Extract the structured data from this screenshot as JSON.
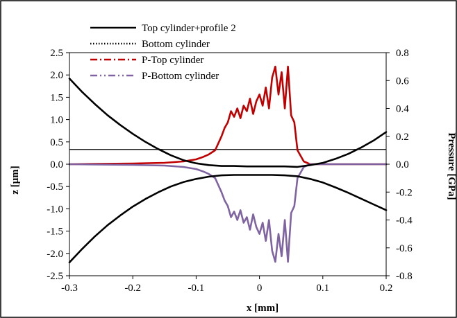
{
  "chart_data": {
    "type": "line",
    "xlabel": "x [mm]",
    "ylabel": "z [µm]",
    "y2label": "Pressure [GPa]",
    "xlim": [
      -0.3,
      0.2
    ],
    "ylim": [
      -2.5,
      2.5
    ],
    "y2lim": [
      -0.8,
      0.8
    ],
    "x_ticks": [
      "-0.3",
      "-0.2",
      "-0.1",
      "0",
      "0.1",
      "0.2"
    ],
    "y_ticks": [
      "2.5",
      "2.0",
      "1.5",
      "1.0",
      "0.5",
      "0.0",
      "-0.5",
      "-1.0",
      "-1.5",
      "-2.0",
      "-2.5"
    ],
    "y2_ticks": [
      "0.8",
      "0.6",
      "0.4",
      "0.2",
      "0.0",
      "-0.2",
      "-0.4",
      "-0.6",
      "-0.8"
    ],
    "grid": false,
    "legend_position": "top-left",
    "reference_line_z": 0.33,
    "series": [
      {
        "name": "Top cylinder+profile 2",
        "axis": "left",
        "color": "#000000",
        "dash": "solid",
        "x": [
          -0.3,
          -0.28,
          -0.26,
          -0.24,
          -0.22,
          -0.2,
          -0.18,
          -0.16,
          -0.14,
          -0.12,
          -0.1,
          -0.08,
          -0.06,
          -0.04,
          -0.02,
          0,
          0.02,
          0.04,
          0.06,
          0.08,
          0.1,
          0.12,
          0.14,
          0.16,
          0.18,
          0.2
        ],
        "values": [
          1.92,
          1.62,
          1.35,
          1.1,
          0.88,
          0.68,
          0.5,
          0.34,
          0.2,
          0.09,
          0.02,
          -0.02,
          -0.04,
          -0.04,
          -0.05,
          -0.05,
          -0.05,
          -0.05,
          -0.06,
          -0.02,
          0.03,
          0.12,
          0.23,
          0.37,
          0.53,
          0.72
        ]
      },
      {
        "name": "Bottom cylinder",
        "axis": "left",
        "color": "#000000",
        "dash": "dotted",
        "x": [
          -0.3,
          -0.28,
          -0.26,
          -0.24,
          -0.22,
          -0.2,
          -0.18,
          -0.16,
          -0.14,
          -0.12,
          -0.1,
          -0.08,
          -0.06,
          -0.04,
          -0.02,
          0,
          0.02,
          0.04,
          0.06,
          0.08,
          0.1,
          0.12,
          0.14,
          0.16,
          0.18,
          0.2
        ],
        "values": [
          -2.2,
          -1.9,
          -1.62,
          -1.37,
          -1.15,
          -0.95,
          -0.78,
          -0.63,
          -0.5,
          -0.4,
          -0.33,
          -0.28,
          -0.25,
          -0.24,
          -0.24,
          -0.24,
          -0.24,
          -0.25,
          -0.27,
          -0.33,
          -0.41,
          -0.52,
          -0.64,
          -0.77,
          -0.9,
          -1.03
        ]
      },
      {
        "name": "P-Top cylinder",
        "axis": "right",
        "color": "#C00000",
        "dash": "dash-dot",
        "x": [
          -0.3,
          -0.2,
          -0.15,
          -0.12,
          -0.1,
          -0.09,
          -0.08,
          -0.07,
          -0.06,
          -0.055,
          -0.05,
          -0.045,
          -0.04,
          -0.035,
          -0.03,
          -0.025,
          -0.02,
          -0.015,
          -0.01,
          -0.005,
          0,
          0.005,
          0.01,
          0.015,
          0.02,
          0.025,
          0.03,
          0.035,
          0.04,
          0.045,
          0.05,
          0.055,
          0.06,
          0.07,
          0.08,
          0.1,
          0.2
        ],
        "values": [
          0.0,
          0.005,
          0.01,
          0.02,
          0.035,
          0.05,
          0.07,
          0.1,
          0.2,
          0.26,
          0.3,
          0.38,
          0.34,
          0.4,
          0.33,
          0.42,
          0.38,
          0.47,
          0.36,
          0.45,
          0.5,
          0.42,
          0.55,
          0.4,
          0.62,
          0.7,
          0.5,
          0.66,
          0.4,
          0.7,
          0.35,
          0.3,
          0.1,
          0.02,
          0.0,
          0.0,
          0.0
        ]
      },
      {
        "name": "P-Bottom cylinder",
        "axis": "right",
        "color": "#8064A2",
        "dash": "dash-dot-dot",
        "x": [
          -0.3,
          -0.2,
          -0.15,
          -0.12,
          -0.1,
          -0.09,
          -0.08,
          -0.07,
          -0.06,
          -0.055,
          -0.05,
          -0.045,
          -0.04,
          -0.035,
          -0.03,
          -0.025,
          -0.02,
          -0.015,
          -0.01,
          -0.005,
          0,
          0.005,
          0.01,
          0.015,
          0.02,
          0.025,
          0.03,
          0.035,
          0.04,
          0.045,
          0.05,
          0.055,
          0.06,
          0.07,
          0.08,
          0.1,
          0.2
        ],
        "values": [
          0.0,
          -0.005,
          -0.01,
          -0.02,
          -0.035,
          -0.05,
          -0.07,
          -0.1,
          -0.2,
          -0.26,
          -0.3,
          -0.38,
          -0.34,
          -0.4,
          -0.33,
          -0.42,
          -0.38,
          -0.47,
          -0.36,
          -0.45,
          -0.5,
          -0.42,
          -0.55,
          -0.4,
          -0.62,
          -0.7,
          -0.5,
          -0.66,
          -0.4,
          -0.7,
          -0.35,
          -0.3,
          -0.1,
          -0.02,
          0.0,
          0.0,
          0.0
        ]
      }
    ]
  }
}
